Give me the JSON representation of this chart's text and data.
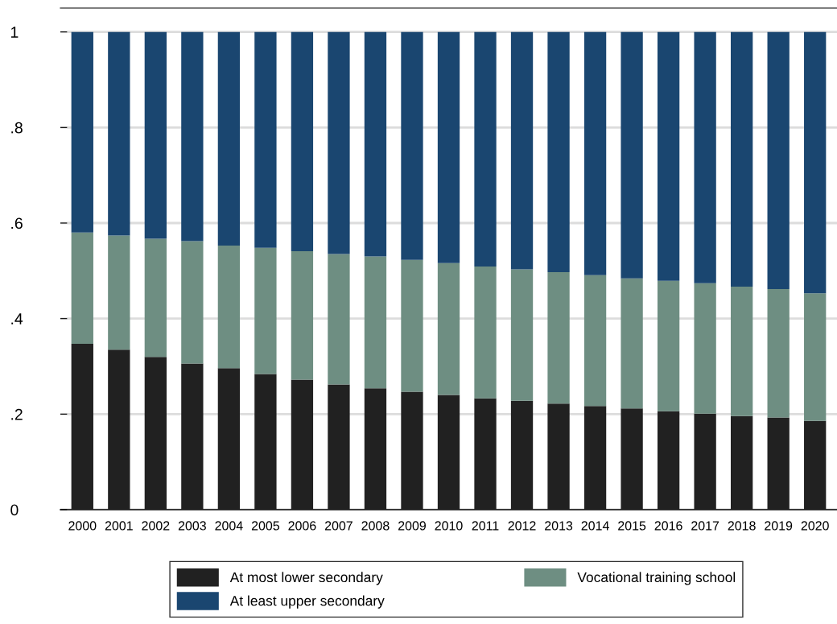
{
  "chart_data": {
    "type": "bar",
    "stacked": true,
    "categories": [
      "2000",
      "2001",
      "2002",
      "2003",
      "2004",
      "2005",
      "2006",
      "2007",
      "2008",
      "2009",
      "2010",
      "2011",
      "2012",
      "2013",
      "2014",
      "2015",
      "2016",
      "2017",
      "2018",
      "2019",
      "2020"
    ],
    "series": [
      {
        "name": "At most lower secondary",
        "color": "#212121",
        "values": [
          0.347,
          0.335,
          0.32,
          0.306,
          0.296,
          0.284,
          0.272,
          0.262,
          0.254,
          0.247,
          0.24,
          0.233,
          0.228,
          0.222,
          0.217,
          0.212,
          0.206,
          0.201,
          0.196,
          0.193,
          0.186
        ]
      },
      {
        "name": "Vocational training school",
        "color": "#6e8e82",
        "values": [
          0.233,
          0.239,
          0.247,
          0.256,
          0.257,
          0.264,
          0.269,
          0.273,
          0.276,
          0.276,
          0.276,
          0.276,
          0.275,
          0.275,
          0.274,
          0.272,
          0.273,
          0.273,
          0.271,
          0.269,
          0.267
        ]
      },
      {
        "name": "At least upper secondary",
        "color": "#1a4670",
        "values": [
          0.42,
          0.426,
          0.433,
          0.438,
          0.447,
          0.452,
          0.459,
          0.465,
          0.47,
          0.477,
          0.484,
          0.491,
          0.497,
          0.503,
          0.509,
          0.516,
          0.521,
          0.526,
          0.533,
          0.538,
          0.547
        ]
      }
    ],
    "ylim": [
      0,
      1.05
    ],
    "yticks": [
      0,
      {
        "value": 0.2,
        "label": ".2"
      },
      {
        "value": 0.4,
        "label": ".4"
      },
      {
        "value": 0.6,
        "label": ".6"
      },
      {
        "value": 0.8,
        "label": ".8"
      },
      1
    ],
    "grid": "y",
    "legend": "bottom"
  }
}
